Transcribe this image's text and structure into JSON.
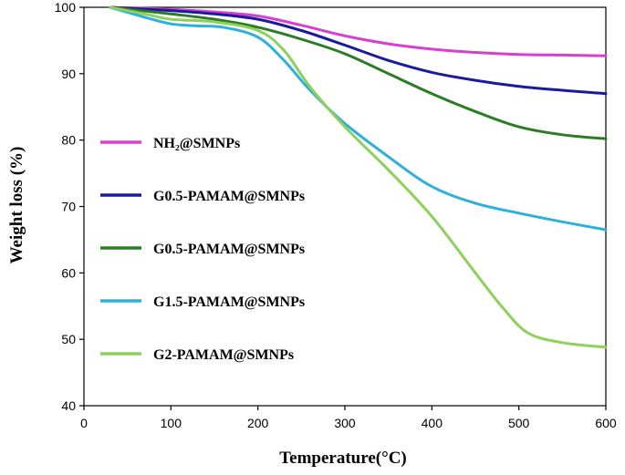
{
  "chart_data": {
    "type": "line",
    "title": "",
    "xlabel": "Temperature(°C)",
    "ylabel": "Weight loss (%)",
    "xlim": [
      0,
      600
    ],
    "ylim": [
      40,
      100
    ],
    "x_ticks": [
      "0",
      "100",
      "200",
      "300",
      "400",
      "500",
      "600"
    ],
    "y_ticks": [
      "40",
      "50",
      "60",
      "70",
      "80",
      "90",
      "100"
    ],
    "grid": false,
    "legend_position": "left",
    "series": [
      {
        "name": "NH₂@SMNPs",
        "color": "#d63fd0",
        "points": [
          [
            30,
            100
          ],
          [
            100,
            99.7
          ],
          [
            150,
            99.3
          ],
          [
            200,
            98.7
          ],
          [
            250,
            97.3
          ],
          [
            300,
            95.7
          ],
          [
            350,
            94.5
          ],
          [
            400,
            93.7
          ],
          [
            450,
            93.2
          ],
          [
            500,
            92.9
          ],
          [
            550,
            92.8
          ],
          [
            600,
            92.7
          ]
        ]
      },
      {
        "name": "G0.5-PAMAM@SMNPs",
        "color": "#1a1a9c",
        "points": [
          [
            30,
            100
          ],
          [
            100,
            99.5
          ],
          [
            150,
            99.0
          ],
          [
            200,
            98.2
          ],
          [
            250,
            96.5
          ],
          [
            300,
            94.3
          ],
          [
            350,
            92.0
          ],
          [
            400,
            90.2
          ],
          [
            450,
            89.0
          ],
          [
            500,
            88.1
          ],
          [
            550,
            87.5
          ],
          [
            600,
            87.0
          ]
        ]
      },
      {
        "name": "G0.5-PAMAM@SMNPs",
        "color": "#2a7d25",
        "points": [
          [
            30,
            100
          ],
          [
            100,
            99.0
          ],
          [
            150,
            98.2
          ],
          [
            200,
            97.0
          ],
          [
            250,
            95.2
          ],
          [
            300,
            93.0
          ],
          [
            350,
            90.0
          ],
          [
            400,
            87.0
          ],
          [
            450,
            84.3
          ],
          [
            500,
            82.0
          ],
          [
            550,
            80.8
          ],
          [
            600,
            80.2
          ]
        ]
      },
      {
        "name": "G1.5-PAMAM@SMNPs",
        "color": "#2eb0dc",
        "points": [
          [
            30,
            100
          ],
          [
            70,
            98.5
          ],
          [
            100,
            97.5
          ],
          [
            130,
            97.2
          ],
          [
            160,
            97.0
          ],
          [
            200,
            95.5
          ],
          [
            230,
            92.0
          ],
          [
            260,
            87.5
          ],
          [
            300,
            82.5
          ],
          [
            350,
            77.5
          ],
          [
            400,
            73.0
          ],
          [
            450,
            70.5
          ],
          [
            500,
            69.0
          ],
          [
            550,
            67.7
          ],
          [
            600,
            66.5
          ]
        ]
      },
      {
        "name": "G2-PAMAM@SMNPs",
        "color": "#8ed05a",
        "points": [
          [
            30,
            100
          ],
          [
            70,
            99.0
          ],
          [
            100,
            98.2
          ],
          [
            150,
            97.8
          ],
          [
            200,
            96.5
          ],
          [
            230,
            93.5
          ],
          [
            260,
            88.0
          ],
          [
            300,
            82.0
          ],
          [
            350,
            75.5
          ],
          [
            400,
            68.5
          ],
          [
            450,
            60.0
          ],
          [
            480,
            55.0
          ],
          [
            510,
            51.0
          ],
          [
            550,
            49.5
          ],
          [
            600,
            48.8
          ]
        ]
      }
    ]
  }
}
